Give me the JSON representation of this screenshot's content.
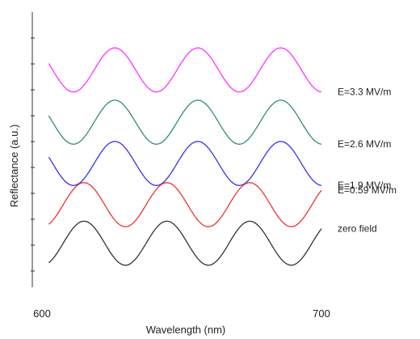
{
  "chart_data": {
    "type": "line",
    "xlabel": "Wavelength (nm)",
    "ylabel": "Reflectance (a.u.)",
    "xlim": [
      600,
      700
    ],
    "x_ticks": [
      "600",
      "700"
    ],
    "y_ticks": "unlabeled",
    "grid": false,
    "legend": "right (labels aligned with curve ends)",
    "series": [
      {
        "name": "E=3.3 MV/m",
        "color": "#ff33ff",
        "offset": 6.9,
        "period": 29.5,
        "phase_peak": 626.5,
        "amplitude": 0.8,
        "x_start": 603,
        "x_end": 700
      },
      {
        "name": "E=2.6 MV/m",
        "color": "#2f8f6a",
        "offset": 5.0,
        "period": 29.5,
        "phase_peak": 626.5,
        "amplitude": 0.8,
        "x_start": 603,
        "x_end": 700
      },
      {
        "name": "E=1.9 MV/m",
        "color": "#3333ee",
        "offset": 3.5,
        "period": 29.5,
        "phase_peak": 626.5,
        "amplitude": 0.8,
        "x_start": 603,
        "x_end": 700
      },
      {
        "name": "E=0.59 MV/m",
        "color": "#ee3333",
        "offset": 2.0,
        "period": 29.5,
        "phase_peak": 615.5,
        "amplitude": 0.8,
        "x_start": 603,
        "x_end": 700
      },
      {
        "name": "zero field",
        "color": "#333333",
        "offset": 0.6,
        "period": 29.5,
        "phase_peak": 615.5,
        "amplitude": 0.8,
        "x_start": 603,
        "x_end": 700
      }
    ],
    "ylim": [
      -1,
      9
    ]
  }
}
